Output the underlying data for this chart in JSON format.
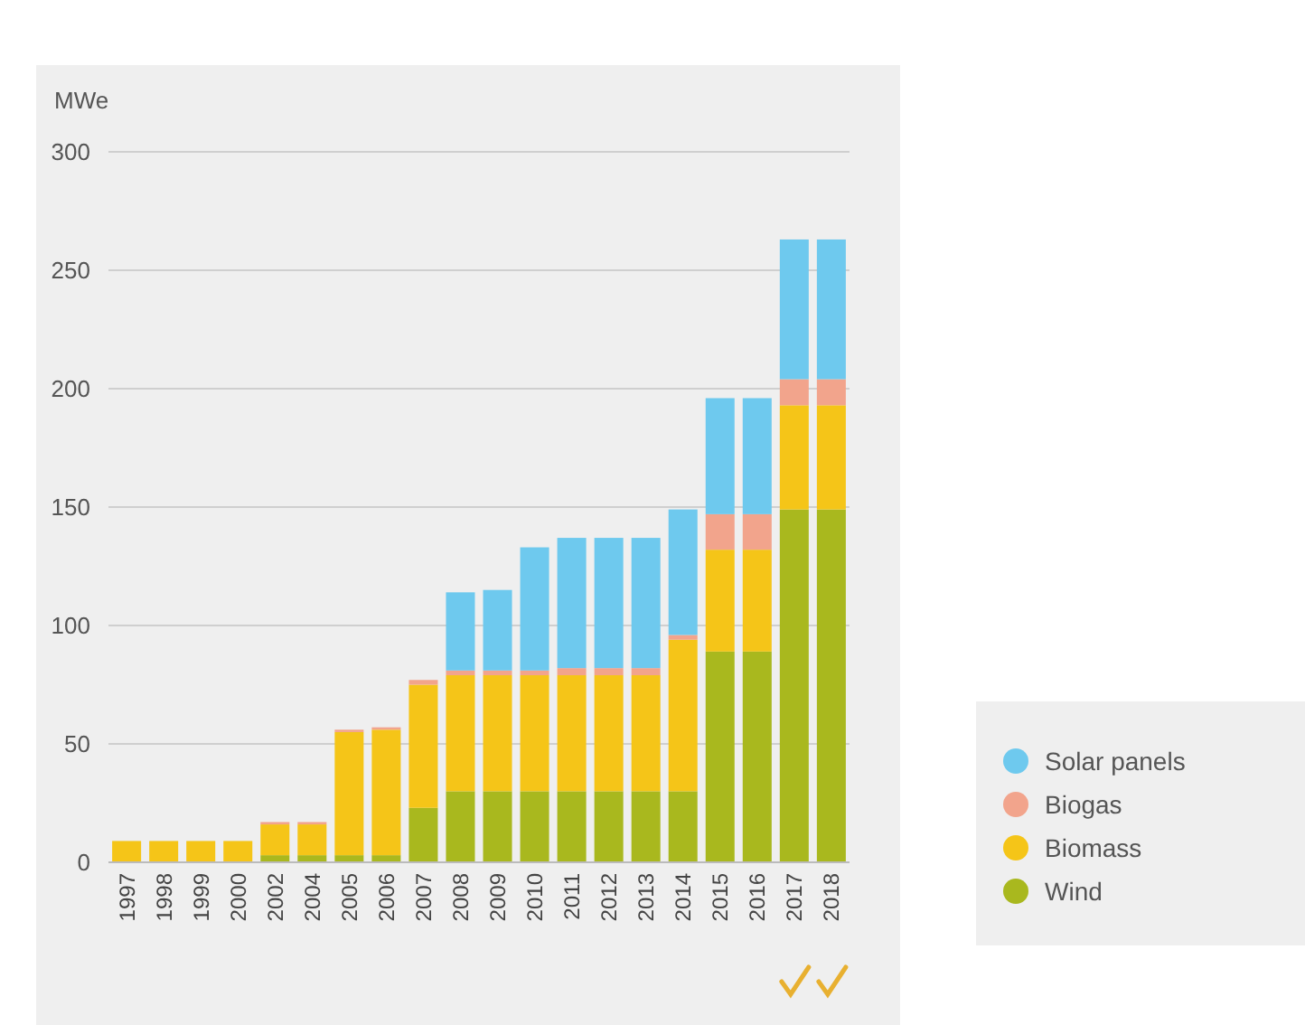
{
  "chart_data": {
    "type": "bar",
    "stacked": true,
    "ylabel": "MWe",
    "categories": [
      "1997",
      "1998",
      "1999",
      "2000",
      "2002",
      "2004",
      "2005",
      "2006",
      "2007",
      "2008",
      "2009",
      "2010",
      "2011",
      "2012",
      "2013",
      "2014",
      "2015",
      "2016",
      "2017",
      "2018"
    ],
    "series": [
      {
        "name": "Wind",
        "color": "#a9b81e",
        "values": [
          0,
          0,
          0,
          0,
          3,
          3,
          3,
          3,
          23,
          30,
          30,
          30,
          30,
          30,
          30,
          30,
          89,
          89,
          149,
          149
        ]
      },
      {
        "name": "Biomass",
        "color": "#f5c518",
        "values": [
          9,
          9,
          9,
          9,
          13,
          13,
          52,
          53,
          52,
          49,
          49,
          49,
          49,
          49,
          49,
          64,
          43,
          43,
          44,
          44
        ]
      },
      {
        "name": "Biogas",
        "color": "#f2a48c",
        "values": [
          0,
          0,
          0,
          0,
          1,
          1,
          1,
          1,
          2,
          2,
          2,
          2,
          3,
          3,
          3,
          2,
          15,
          15,
          11,
          11
        ]
      },
      {
        "name": "Solar panels",
        "color": "#6ec9ee",
        "values": [
          0,
          0,
          0,
          0,
          0,
          0,
          0,
          0,
          0,
          33,
          34,
          52,
          55,
          55,
          55,
          53,
          49,
          49,
          59,
          59
        ]
      }
    ],
    "ylim": [
      0,
      300
    ],
    "yticks": [
      0,
      50,
      100,
      150,
      200,
      250,
      300
    ],
    "grid": "y",
    "legend": "bottom right"
  }
}
